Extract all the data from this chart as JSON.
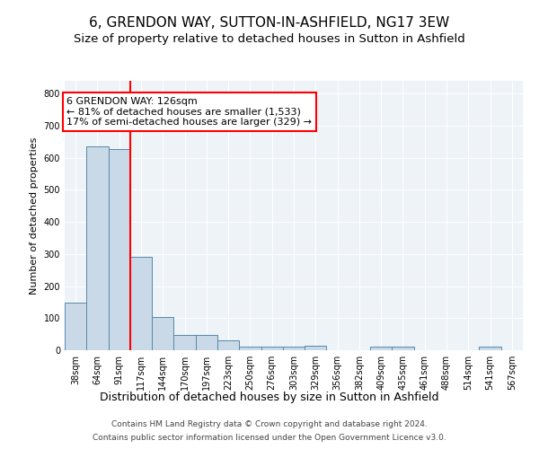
{
  "title": "6, GRENDON WAY, SUTTON-IN-ASHFIELD, NG17 3EW",
  "subtitle": "Size of property relative to detached houses in Sutton in Ashfield",
  "xlabel": "Distribution of detached houses by size in Sutton in Ashfield",
  "ylabel": "Number of detached properties",
  "categories": [
    "38sqm",
    "64sqm",
    "91sqm",
    "117sqm",
    "144sqm",
    "170sqm",
    "197sqm",
    "223sqm",
    "250sqm",
    "276sqm",
    "303sqm",
    "329sqm",
    "356sqm",
    "382sqm",
    "409sqm",
    "435sqm",
    "461sqm",
    "488sqm",
    "514sqm",
    "541sqm",
    "567sqm"
  ],
  "values": [
    148,
    635,
    628,
    290,
    103,
    48,
    47,
    30,
    12,
    12,
    12,
    14,
    0,
    0,
    10,
    10,
    0,
    0,
    0,
    10,
    0
  ],
  "bar_color": "#c9d9e8",
  "bar_edge_color": "#5588aa",
  "red_line_x": 2.5,
  "annotation_text": "6 GRENDON WAY: 126sqm\n← 81% of detached houses are smaller (1,533)\n17% of semi-detached houses are larger (329) →",
  "annotation_box_color": "white",
  "annotation_box_edge_color": "red",
  "footer_line1": "Contains HM Land Registry data © Crown copyright and database right 2024.",
  "footer_line2": "Contains public sector information licensed under the Open Government Licence v3.0.",
  "ylim": [
    0,
    840
  ],
  "yticks": [
    0,
    100,
    200,
    300,
    400,
    500,
    600,
    700,
    800
  ],
  "background_color": "#eef3f8",
  "grid_color": "white",
  "fig_background": "white",
  "title_fontsize": 11,
  "subtitle_fontsize": 9.5,
  "ylabel_fontsize": 8,
  "xlabel_fontsize": 9,
  "tick_fontsize": 7,
  "footer_fontsize": 6.5,
  "annotation_fontsize": 8
}
